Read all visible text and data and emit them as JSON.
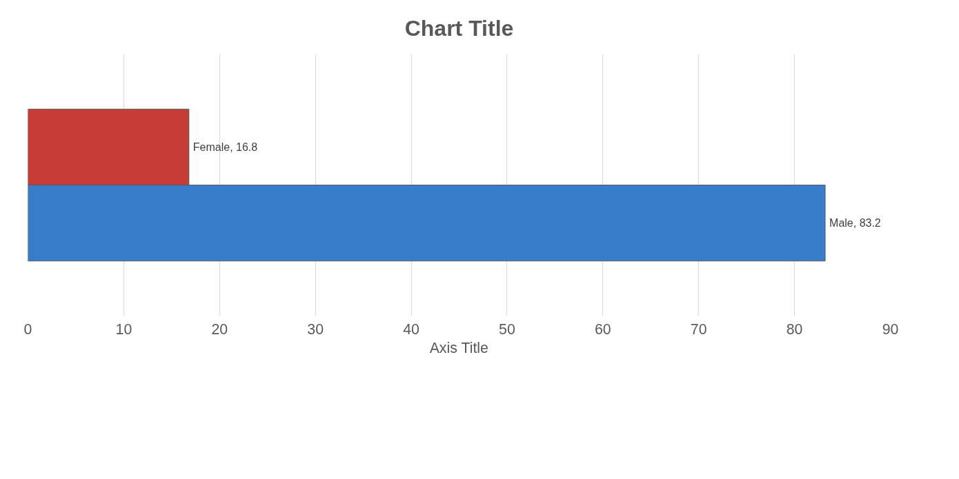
{
  "chart_data": {
    "type": "bar",
    "orientation": "horizontal",
    "title": "Chart Title",
    "xlabel": "Axis Title",
    "categories": [
      null
    ],
    "series": [
      {
        "name": "Female",
        "color": "#c83c38",
        "values": [
          16.8
        ],
        "value_labels": [
          ", 16.8"
        ]
      },
      {
        "name": "Male",
        "color": "#3a7ccc",
        "values": [
          83.2
        ],
        "value_labels": [
          ", 83.2"
        ]
      }
    ],
    "xlim": [
      0,
      90
    ],
    "xticks": [
      0,
      10,
      20,
      30,
      40,
      50,
      60,
      70,
      80,
      90
    ],
    "grid": "x",
    "tick_labels": "x"
  }
}
